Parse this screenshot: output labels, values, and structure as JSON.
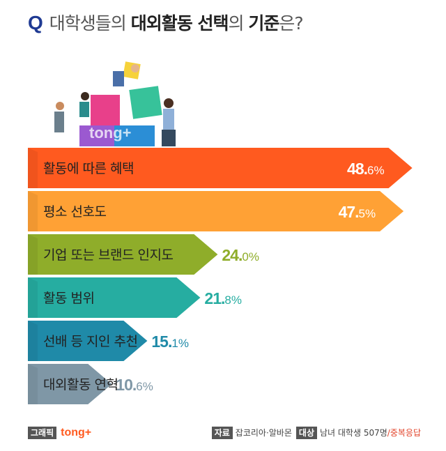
{
  "header": {
    "q_mark": "Q",
    "title_part1": "대학생들의 ",
    "title_part2": "대외활동 선택",
    "title_part3": "의 ",
    "title_part4": "기준",
    "title_part5": "은?"
  },
  "watermark": "tong+",
  "chart_data": {
    "type": "bar",
    "orientation": "horizontal",
    "categories": [
      "활동에 따른 혜택",
      "평소 선호도",
      "기업 또는 브랜드 인지도",
      "활동 범위",
      "선배 등 지인 추천",
      "대외활동 연혁"
    ],
    "values": [
      48.6,
      47.5,
      24.0,
      21.8,
      15.1,
      10.6
    ],
    "value_labels_int": [
      "48.",
      "47.",
      "24.",
      "21.",
      "15.",
      "10."
    ],
    "value_labels_dec": [
      "6%",
      "5%",
      "0%",
      "8%",
      "1%",
      "6%"
    ],
    "unit": "%",
    "colors": [
      "#ff5a1f",
      "#ffa135",
      "#8fad2a",
      "#26ada1",
      "#1f8aa8",
      "#7f97a6"
    ],
    "value_colors": [
      "#ffffff",
      "#ffffff",
      "#8fad2a",
      "#26ada1",
      "#1f8aa8",
      "#7f97a6"
    ]
  },
  "footer": {
    "graphic_tag": "그래픽",
    "brand": "tong+",
    "source_tag": "자료",
    "source": "잡코리아·알바몬",
    "target_tag": "대상",
    "target": "남녀 대학생 507명",
    "multi": "/중복응답"
  }
}
